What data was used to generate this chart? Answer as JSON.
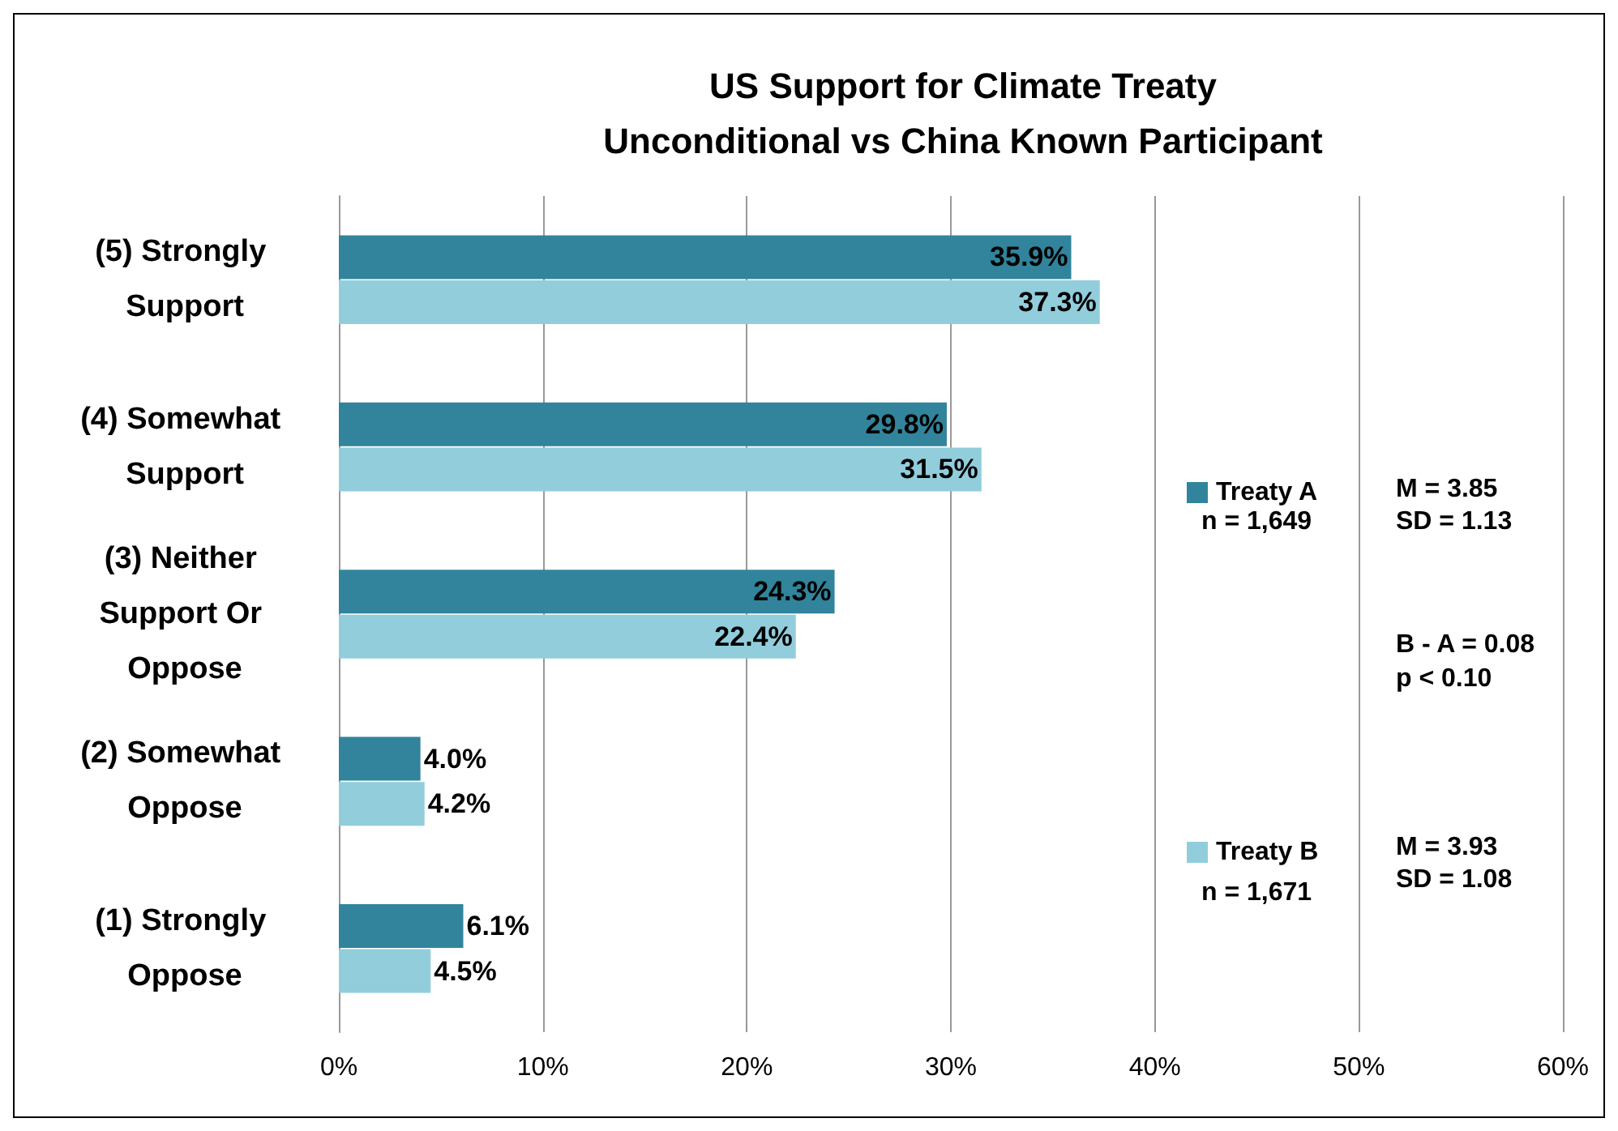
{
  "chart_data": {
    "type": "bar",
    "orientation": "horizontal",
    "title": "US Support for Climate Treaty",
    "subtitle": "Unconditional vs China Known Participant",
    "categories": [
      "(5) Strongly Support",
      "(4) Somewhat Support",
      "(3) Neither Support Or Oppose",
      "(2) Somewhat Oppose",
      "(1) Strongly Oppose"
    ],
    "series": [
      {
        "name": "Treaty A",
        "color": "#31849b",
        "values": [
          35.9,
          29.8,
          24.3,
          4.0,
          6.1
        ],
        "value_labels": [
          "35.9%",
          "29.8%",
          "24.3%",
          "4.0%",
          "6.1%"
        ]
      },
      {
        "name": "Treaty B",
        "color": "#92cddc",
        "values": [
          37.3,
          31.5,
          22.4,
          4.2,
          4.5
        ],
        "value_labels": [
          "37.3%",
          "31.5%",
          "22.4%",
          "4.2%",
          "4.5%"
        ]
      }
    ],
    "xlim": [
      0,
      60
    ],
    "xticks": [
      {
        "value": 0,
        "label": "0%"
      },
      {
        "value": 10,
        "label": "10%"
      },
      {
        "value": 20,
        "label": "20%"
      },
      {
        "value": 30,
        "label": "30%"
      },
      {
        "value": 40,
        "label": "40%"
      },
      {
        "value": 50,
        "label": "50%"
      },
      {
        "value": 60,
        "label": "60%"
      }
    ],
    "grid": "x",
    "legend": "right",
    "annotations": [
      "n = 1,649",
      "M = 3.85",
      "SD = 1.13",
      "B - A = 0.08",
      "p < 0.10",
      "n = 1,671",
      "M = 3.93",
      "SD = 1.08"
    ]
  }
}
